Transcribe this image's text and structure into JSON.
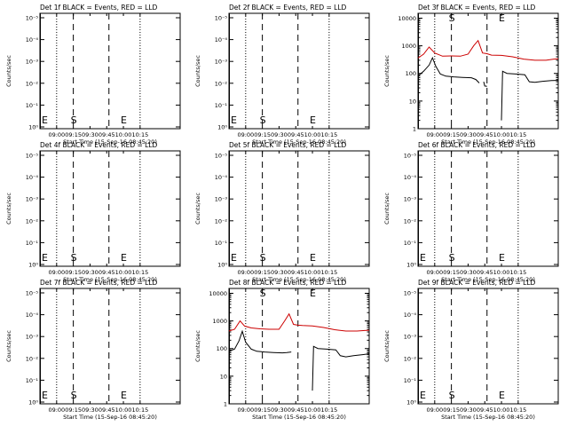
{
  "chart_data": [
    {
      "type": "line",
      "title": "Det 1f BLACK = Events, RED = LLD",
      "xlabel": "Start Time (15-Sep-16 08:45:20)",
      "ylabel": "Counts/sec",
      "ytick_labels": [
        "10⁰",
        "10⁻¹",
        "10⁻²",
        "10⁻³",
        "10⁻⁴",
        "10⁻⁵"
      ],
      "xtick_labels": [
        "09:00",
        "09:15",
        "09:30",
        "09:45",
        "10:00",
        "10:15"
      ],
      "markers": [
        {
          "label": "E",
          "pos": "start"
        },
        {
          "label": "S",
          "pos": "09:15"
        },
        {
          "label": "E",
          "pos": "10:00"
        }
      ],
      "series": []
    },
    {
      "type": "line",
      "title": "Det 2f BLACK = Events, RED = LLD",
      "xlabel": "Start Time (15-Sep-16 08:45:20)",
      "ylabel": "Counts/sec",
      "ytick_labels": [
        "10⁰",
        "10⁻¹",
        "10⁻²",
        "10⁻³",
        "10⁻⁴",
        "10⁻⁵"
      ],
      "xtick_labels": [
        "09:00",
        "09:15",
        "09:30",
        "09:45",
        "10:00",
        "10:15"
      ],
      "markers": [
        {
          "label": "E",
          "pos": "start"
        },
        {
          "label": "S",
          "pos": "09:15"
        },
        {
          "label": "E",
          "pos": "10:00"
        }
      ],
      "series": []
    },
    {
      "type": "line",
      "title": "Det 3f BLACK = Events, RED = LLD",
      "xlabel": "Start Time (15-Sep-16 08:45:20)",
      "ylabel": "Counts/sec",
      "ytick_labels": [
        "1",
        "10",
        "100",
        "1000",
        "10000"
      ],
      "xtick_labels": [
        "09:00",
        "09:15",
        "09:30",
        "09:45",
        "10:00",
        "10:15"
      ],
      "markers": [
        {
          "label": "S",
          "pos": "09:15"
        },
        {
          "label": "E",
          "pos": "10:00"
        }
      ],
      "series": [
        {
          "color": "#cc0000",
          "points": [
            [
              0,
              360
            ],
            [
              5,
              500
            ],
            [
              10,
              900
            ],
            [
              15,
              550
            ],
            [
              22,
              420
            ],
            [
              30,
              430
            ],
            [
              38,
              420
            ],
            [
              45,
              500
            ],
            [
              50,
              1000
            ],
            [
              54,
              1550
            ],
            [
              58,
              550
            ],
            [
              62,
              520
            ],
            [
              66,
              460
            ],
            [
              75,
              450
            ],
            [
              85,
              400
            ],
            [
              95,
              330
            ],
            [
              105,
              300
            ],
            [
              115,
              300
            ],
            [
              122,
              330
            ],
            [
              126,
              340
            ]
          ]
        },
        {
          "color": "#000000",
          "points": [
            [
              0,
              80
            ],
            [
              5,
              120
            ],
            [
              10,
              200
            ],
            [
              13,
              370
            ],
            [
              16,
              180
            ],
            [
              20,
              95
            ],
            [
              25,
              80
            ],
            [
              32,
              75
            ],
            [
              40,
              72
            ],
            [
              48,
              70
            ],
            [
              52,
              60
            ],
            [
              55,
              45
            ]
          ]
        },
        {
          "color": "#000000",
          "points": [
            [
              59,
              50
            ],
            [
              60,
              35
            ],
            [
              62,
              34
            ]
          ]
        },
        {
          "color": "#000000",
          "points": [
            [
              75,
              2
            ],
            [
              76,
              120
            ],
            [
              80,
              100
            ],
            [
              88,
              95
            ],
            [
              96,
              90
            ],
            [
              100,
              50
            ],
            [
              105,
              48
            ],
            [
              112,
              52
            ],
            [
              120,
              55
            ],
            [
              126,
              56
            ]
          ]
        }
      ]
    },
    {
      "type": "line",
      "title": "Det 4f BLACK = Events, RED = LLD",
      "xlabel": "Start Time (15-Sep-16 08:45:20)",
      "ylabel": "Counts/sec",
      "ytick_labels": [
        "10⁰",
        "10⁻¹",
        "10⁻²",
        "10⁻³",
        "10⁻⁴",
        "10⁻⁵"
      ],
      "xtick_labels": [
        "09:00",
        "09:15",
        "09:30",
        "09:45",
        "10:00",
        "10:15"
      ],
      "markers": [
        {
          "label": "E",
          "pos": "start"
        },
        {
          "label": "S",
          "pos": "09:15"
        },
        {
          "label": "E",
          "pos": "10:00"
        }
      ],
      "series": []
    },
    {
      "type": "line",
      "title": "Det 5f BLACK = Events, RED = LLD",
      "xlabel": "Start Time (15-Sep-16 08:45:20)",
      "ylabel": "Counts/sec",
      "ytick_labels": [
        "10⁰",
        "10⁻¹",
        "10⁻²",
        "10⁻³",
        "10⁻⁴",
        "10⁻⁵"
      ],
      "xtick_labels": [
        "09:00",
        "09:15",
        "09:30",
        "09:45",
        "10:00",
        "10:15"
      ],
      "markers": [
        {
          "label": "E",
          "pos": "start"
        },
        {
          "label": "S",
          "pos": "09:15"
        },
        {
          "label": "E",
          "pos": "10:00"
        }
      ],
      "series": []
    },
    {
      "type": "line",
      "title": "Det 6f BLACK = Events, RED = LLD",
      "xlabel": "Start Time (15-Sep-16 08:45:20)",
      "ylabel": "Counts/sec",
      "ytick_labels": [
        "10⁰",
        "10⁻¹",
        "10⁻²",
        "10⁻³",
        "10⁻⁴",
        "10⁻⁵"
      ],
      "xtick_labels": [
        "09:00",
        "09:15",
        "09:30",
        "09:45",
        "10:00",
        "10:15"
      ],
      "markers": [
        {
          "label": "E",
          "pos": "start"
        },
        {
          "label": "S",
          "pos": "09:15"
        },
        {
          "label": "E",
          "pos": "10:00"
        }
      ],
      "series": []
    },
    {
      "type": "line",
      "title": "Det 7f BLACK = Events, RED = LLD",
      "xlabel": "Start Time (15-Sep-16 08:45:20)",
      "ylabel": "Counts/sec",
      "ytick_labels": [
        "10⁰",
        "10⁻¹",
        "10⁻²",
        "10⁻³",
        "10⁻⁴",
        "10⁻⁵"
      ],
      "xtick_labels": [
        "09:00",
        "09:15",
        "09:30",
        "09:45",
        "10:00",
        "10:15"
      ],
      "markers": [
        {
          "label": "E",
          "pos": "start"
        },
        {
          "label": "S",
          "pos": "09:15"
        },
        {
          "label": "E",
          "pos": "10:00"
        }
      ],
      "series": []
    },
    {
      "type": "line",
      "title": "Det 8f BLACK = Events, RED = LLD",
      "xlabel": "Start Time (15-Sep-16 08:45:20)",
      "ylabel": "Counts/sec",
      "ytick_labels": [
        "1",
        "10",
        "100",
        "1000",
        "10000"
      ],
      "xtick_labels": [
        "09:00",
        "09:15",
        "09:30",
        "09:45",
        "10:00",
        "10:15"
      ],
      "markers": [
        {
          "label": "S",
          "pos": "09:15"
        },
        {
          "label": "E",
          "pos": "10:00"
        }
      ],
      "series": [
        {
          "color": "#cc0000",
          "points": [
            [
              0,
              430
            ],
            [
              5,
              500
            ],
            [
              10,
              1000
            ],
            [
              14,
              650
            ],
            [
              20,
              560
            ],
            [
              28,
              520
            ],
            [
              36,
              500
            ],
            [
              45,
              500
            ],
            [
              50,
              1000
            ],
            [
              54,
              1800
            ],
            [
              58,
              750
            ],
            [
              62,
              700
            ],
            [
              66,
              680
            ],
            [
              75,
              660
            ],
            [
              85,
              580
            ],
            [
              95,
              480
            ],
            [
              105,
              430
            ],
            [
              115,
              430
            ],
            [
              122,
              450
            ],
            [
              126,
              460
            ]
          ]
        },
        {
          "color": "#000000",
          "points": [
            [
              0,
              80
            ],
            [
              5,
              95
            ],
            [
              9,
              190
            ],
            [
              12,
              420
            ],
            [
              15,
              170
            ],
            [
              20,
              95
            ],
            [
              25,
              80
            ],
            [
              32,
              75
            ],
            [
              40,
              72
            ],
            [
              48,
              70
            ],
            [
              52,
              72
            ],
            [
              56,
              75
            ]
          ]
        },
        {
          "color": "#000000",
          "points": [
            [
              75,
              3
            ],
            [
              76,
              120
            ],
            [
              80,
              100
            ],
            [
              88,
              95
            ],
            [
              96,
              90
            ],
            [
              100,
              55
            ],
            [
              105,
              50
            ],
            [
              112,
              55
            ],
            [
              120,
              60
            ],
            [
              126,
              65
            ]
          ]
        }
      ]
    },
    {
      "type": "line",
      "title": "Det 9f BLACK = Events, RED = LLD",
      "xlabel": "Start Time (15-Sep-16 08:45:20)",
      "ylabel": "Counts/sec",
      "ytick_labels": [
        "10⁰",
        "10⁻¹",
        "10⁻²",
        "10⁻³",
        "10⁻⁴",
        "10⁻⁵"
      ],
      "xtick_labels": [
        "09:00",
        "09:15",
        "09:30",
        "09:45",
        "10:00",
        "10:15"
      ],
      "markers": [
        {
          "label": "E",
          "pos": "start"
        },
        {
          "label": "S",
          "pos": "09:15"
        },
        {
          "label": "E",
          "pos": "10:00"
        }
      ],
      "series": []
    }
  ]
}
